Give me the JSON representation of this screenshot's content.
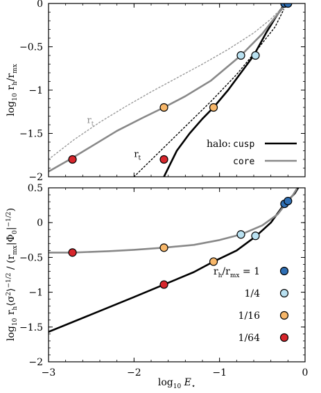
{
  "chart_data": [
    {
      "type": "line",
      "xlim": [
        -3,
        0
      ],
      "ylim": [
        -2,
        0
      ],
      "xticks": [
        -3,
        -2,
        -1,
        0
      ],
      "yticks": [
        0,
        -0.5,
        -1,
        -1.5,
        -2
      ],
      "ytick_labels": [
        "0",
        "−0.5",
        "−1",
        "−1.5",
        "−2"
      ],
      "ylabel": "log10 rh/rmx",
      "legend_title": "halo:",
      "legend_placement": "bottom-right",
      "series": [
        {
          "name": "cusp",
          "color": "#000000",
          "style": "solid",
          "x": [
            -1.65,
            -1.5,
            -1.35,
            -1.2,
            -1.07,
            -0.9,
            -0.75,
            -0.6,
            -0.45,
            -0.35,
            -0.27,
            -0.22
          ],
          "y": [
            -2.0,
            -1.7,
            -1.5,
            -1.33,
            -1.2,
            -1.0,
            -0.8,
            -0.6,
            -0.33,
            -0.17,
            -0.05,
            0.0
          ]
        },
        {
          "name": "core",
          "color": "#888888",
          "style": "solid",
          "x": [
            -3.0,
            -2.75,
            -2.5,
            -2.2,
            -1.9,
            -1.65,
            -1.4,
            -1.1,
            -0.75,
            -0.5,
            -0.35,
            -0.25,
            -0.22
          ],
          "y": [
            -1.94,
            -1.8,
            -1.65,
            -1.47,
            -1.32,
            -1.2,
            -1.07,
            -0.89,
            -0.6,
            -0.35,
            -0.16,
            -0.04,
            0.0
          ]
        },
        {
          "name": "",
          "label": "rt",
          "color": "#999999",
          "style": "dotted",
          "x": [
            -3.0,
            -2.7,
            -2.4,
            -2.1,
            -1.8,
            -1.5,
            -1.2,
            -0.9,
            -0.6,
            -0.4,
            -0.25
          ],
          "y": [
            -1.8,
            -1.57,
            -1.37,
            -1.19,
            -1.02,
            -0.86,
            -0.7,
            -0.53,
            -0.34,
            -0.18,
            -0.03
          ]
        },
        {
          "name": "",
          "label": "rt",
          "color": "#000000",
          "style": "dotted",
          "x": [
            -2.0,
            -1.7,
            -1.4,
            -1.1,
            -0.8,
            -0.55,
            -0.35,
            -0.25
          ],
          "y": [
            -2.0,
            -1.71,
            -1.42,
            -1.13,
            -0.82,
            -0.52,
            -0.27,
            -0.07
          ]
        }
      ],
      "markers": [
        {
          "x": -0.24,
          "y": 0.0,
          "color": "#2e6fb4"
        },
        {
          "x": -0.2,
          "y": 0.0,
          "color": "#2e6fb4"
        },
        {
          "x": -0.75,
          "y": -0.6,
          "color": "#b9e1f1"
        },
        {
          "x": -0.58,
          "y": -0.6,
          "color": "#b9e1f1"
        },
        {
          "x": -1.65,
          "y": -1.2,
          "color": "#f7b76a"
        },
        {
          "x": -1.07,
          "y": -1.2,
          "color": "#f7b76a"
        },
        {
          "x": -2.72,
          "y": -1.8,
          "color": "#d7262c"
        },
        {
          "x": -1.65,
          "y": -1.8,
          "color": "#d7262c"
        }
      ],
      "annotations": [
        {
          "text": "rt",
          "x": -2.55,
          "y": -1.38,
          "color": "#888888"
        },
        {
          "text": "rt",
          "x": -2.0,
          "y": -1.77,
          "color": "#000000"
        }
      ],
      "legend": [
        {
          "label": "cusp",
          "color": "#000000"
        },
        {
          "label": "core",
          "color": "#888888"
        }
      ]
    },
    {
      "type": "line",
      "xlim": [
        -3,
        0
      ],
      "ylim": [
        -2,
        0.5
      ],
      "xticks": [
        -3,
        -2,
        -1,
        0
      ],
      "xtick_labels": [
        "−3",
        "−2",
        "−1",
        "0"
      ],
      "yticks": [
        0.5,
        0,
        -0.5,
        -1,
        -1.5,
        -2
      ],
      "ytick_labels": [
        "0.5",
        "0",
        "−0.5",
        "−1",
        "−1.5",
        "−2"
      ],
      "xlabel": "log10 E⋆",
      "ylabel": "log10 rh⟨σ²⟩^−1/2 / (rmx|Φ0|^−1/2)",
      "legend_placement": "bottom-right",
      "series": [
        {
          "name": "cusp",
          "color": "#000000",
          "style": "solid",
          "x": [
            -3.0,
            -2.5,
            -2.0,
            -1.65,
            -1.3,
            -1.07,
            -0.8,
            -0.58,
            -0.4,
            -0.27,
            -0.2,
            -0.12,
            -0.08
          ],
          "y": [
            -1.57,
            -1.32,
            -1.07,
            -0.89,
            -0.71,
            -0.56,
            -0.4,
            -0.2,
            0.0,
            0.22,
            0.32,
            0.42,
            0.5
          ]
        },
        {
          "name": "core",
          "color": "#888888",
          "style": "solid",
          "x": [
            -3.0,
            -2.72,
            -2.3,
            -2.0,
            -1.65,
            -1.3,
            -1.0,
            -0.75,
            -0.5,
            -0.32,
            -0.22,
            -0.15,
            -0.1
          ],
          "y": [
            -0.43,
            -0.43,
            -0.41,
            -0.39,
            -0.36,
            -0.32,
            -0.25,
            -0.17,
            -0.04,
            0.12,
            0.28,
            0.38,
            0.48
          ]
        }
      ],
      "markers": [
        {
          "x": -0.24,
          "y": 0.27,
          "color": "#2e6fb4"
        },
        {
          "x": -0.2,
          "y": 0.31,
          "color": "#2e6fb4"
        },
        {
          "x": -0.75,
          "y": -0.17,
          "color": "#b9e1f1"
        },
        {
          "x": -0.58,
          "y": -0.19,
          "color": "#b9e1f1"
        },
        {
          "x": -1.65,
          "y": -0.36,
          "color": "#f7b76a"
        },
        {
          "x": -1.07,
          "y": -0.56,
          "color": "#f7b76a"
        },
        {
          "x": -2.72,
          "y": -0.43,
          "color": "#d7262c"
        },
        {
          "x": -1.65,
          "y": -0.89,
          "color": "#d7262c"
        }
      ],
      "legend": [
        {
          "label": "rh/rmx = 1",
          "color": "#2e6fb4"
        },
        {
          "label": "1/4",
          "color": "#b9e1f1"
        },
        {
          "label": "1/16",
          "color": "#f7b76a"
        },
        {
          "label": "1/64",
          "color": "#d7262c"
        }
      ]
    }
  ]
}
